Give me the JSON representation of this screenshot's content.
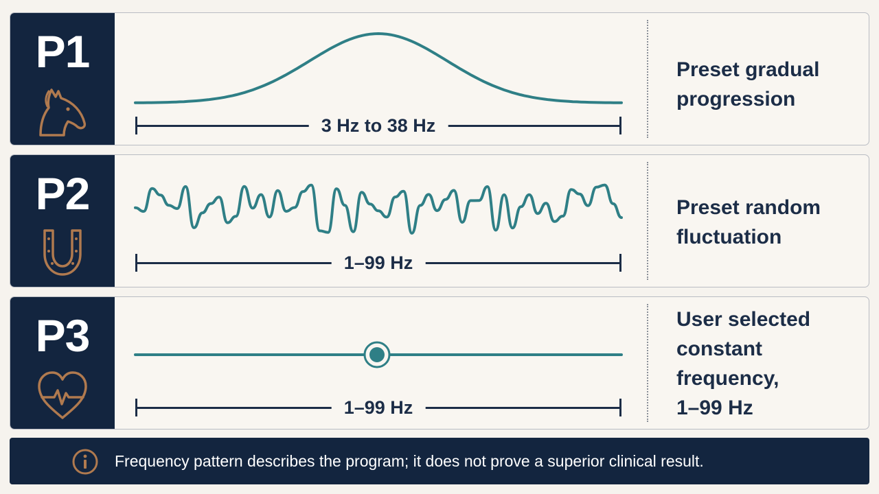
{
  "programs": [
    {
      "code": "P1",
      "icon": "horse-head-icon",
      "pattern": "gradual-progression",
      "range_label": "3 Hz to 38 Hz",
      "description": [
        "Preset gradual",
        "progression"
      ]
    },
    {
      "code": "P2",
      "icon": "horseshoe-icon",
      "pattern": "random-fluctuation",
      "range_label": "1–99 Hz",
      "description": [
        "Preset random",
        "fluctuation"
      ]
    },
    {
      "code": "P3",
      "icon": "heart-pulse-icon",
      "pattern": "constant",
      "range_label": "1–99 Hz",
      "description": [
        "User selected",
        "constant",
        "frequency,",
        "1–99 Hz"
      ]
    }
  ],
  "notice": {
    "icon": "info-icon",
    "text": "Frequency pattern describes the program; it does not prove a superior clinical result."
  },
  "colors": {
    "navy": "#13253f",
    "teal": "#2f7f86",
    "copper": "#b07a4f",
    "text": "#1c2d47"
  }
}
